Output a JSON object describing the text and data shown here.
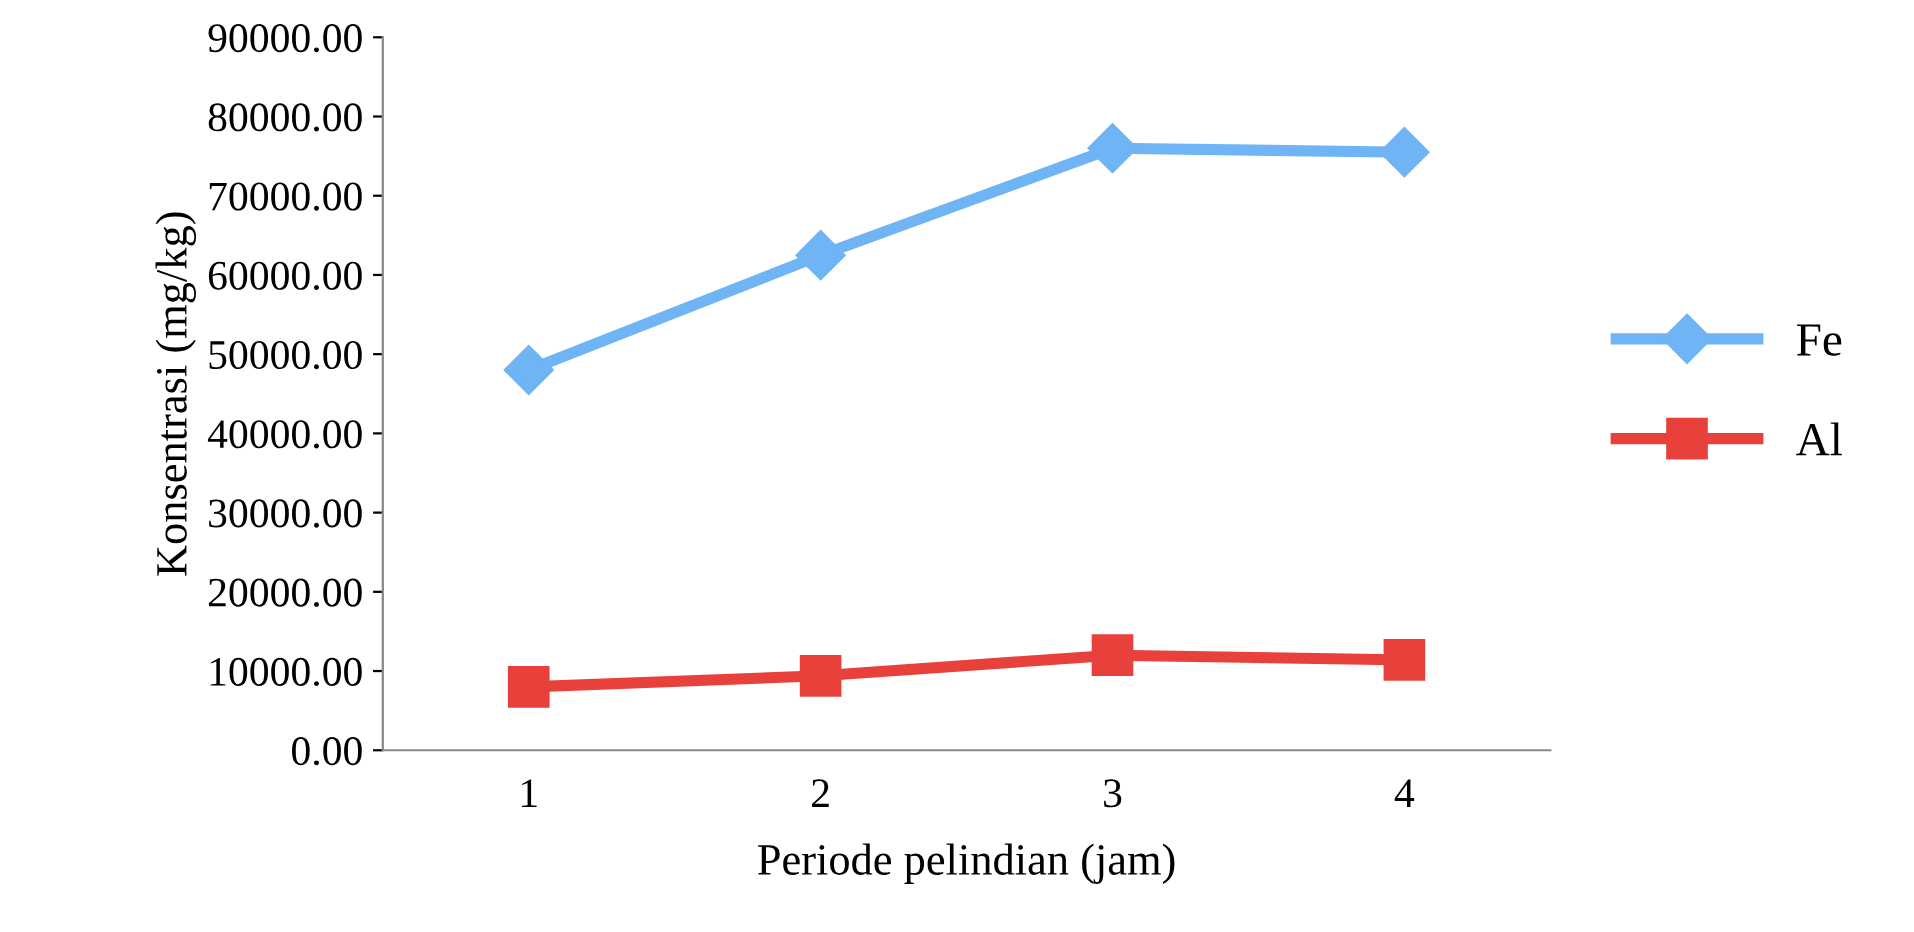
{
  "chart_data": {
    "type": "line",
    "xlabel": "Periode pelindian (jam)",
    "ylabel": "Konsentrasi (mg/kg)",
    "categories": [
      "1",
      "2",
      "3",
      "4"
    ],
    "series": [
      {
        "name": "Fe",
        "color": "#6fb4f5",
        "marker": "diamond",
        "values": [
          48000,
          62500,
          76000,
          75500
        ]
      },
      {
        "name": "Al",
        "color": "#e8413c",
        "marker": "square",
        "values": [
          8000,
          9400,
          12000,
          11400
        ]
      }
    ],
    "ylim": [
      0,
      90000
    ],
    "yticks": [
      {
        "value": 0,
        "label": "0.00"
      },
      {
        "value": 10000,
        "label": "10000.00"
      },
      {
        "value": 20000,
        "label": "20000.00"
      },
      {
        "value": 30000,
        "label": "30000.00"
      },
      {
        "value": 40000,
        "label": "40000.00"
      },
      {
        "value": 50000,
        "label": "50000.00"
      },
      {
        "value": 60000,
        "label": "60000.00"
      },
      {
        "value": 70000,
        "label": "70000.00"
      },
      {
        "value": 80000,
        "label": "80000.00"
      },
      {
        "value": 90000,
        "label": "90000.00"
      }
    ],
    "grid": false,
    "legend": "right",
    "line_style": "solid"
  }
}
